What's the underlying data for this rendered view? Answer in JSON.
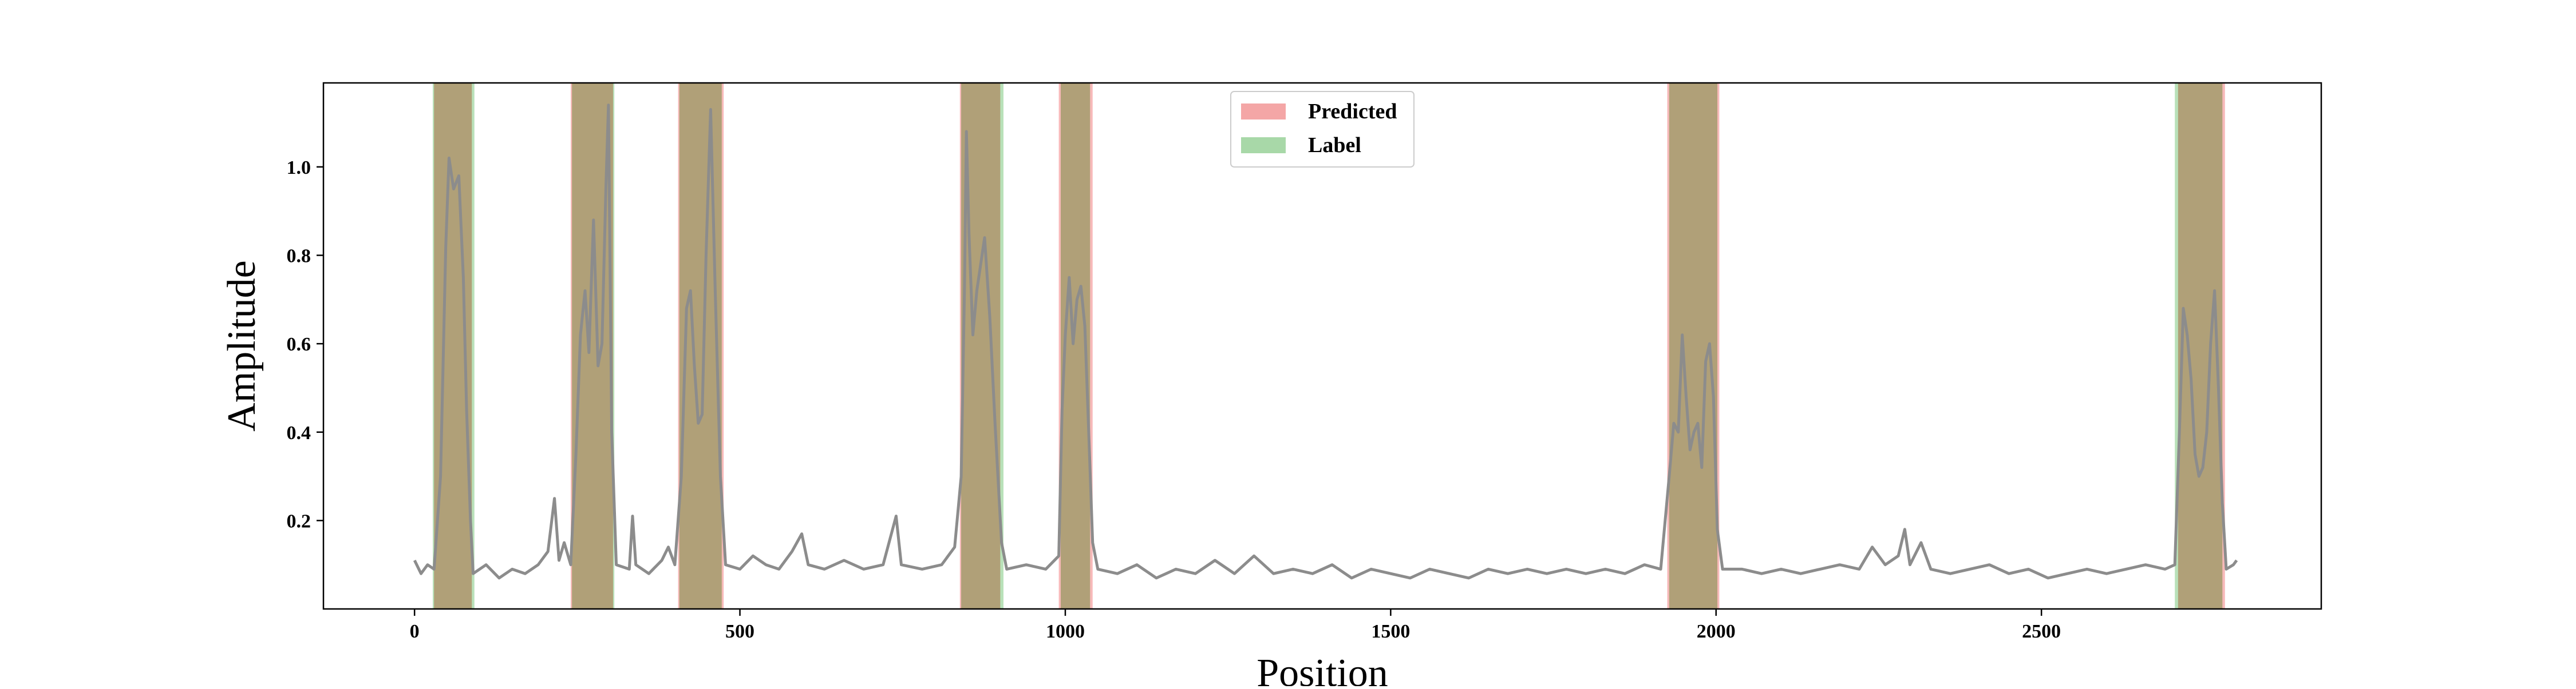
{
  "chart_data": {
    "type": "line",
    "xlabel": "Position",
    "ylabel": "Amplitude",
    "xlim": [
      -140,
      2930
    ],
    "ylim": [
      0.0,
      1.19
    ],
    "xticks": [
      0,
      500,
      1000,
      1500,
      2000,
      2500
    ],
    "yticks": [
      0.2,
      0.4,
      0.6,
      0.8,
      1.0
    ],
    "xtick_labels": [
      "0",
      "500",
      "1000",
      "1500",
      "2000",
      "2500"
    ],
    "ytick_labels": [
      "0.2",
      "0.4",
      "0.6",
      "0.8",
      "1.0"
    ],
    "grid": false,
    "legend": {
      "placement": "top-center",
      "entries": [
        {
          "name": "Predicted",
          "color": "#f4a6a6"
        },
        {
          "name": "Label",
          "color": "#a8d8a8"
        }
      ]
    },
    "colors": {
      "signal": "#8c8c8c",
      "predicted": "#f08080",
      "label": "#7fc97f",
      "overlap": "#b0a078"
    },
    "predicted_regions": [
      [
        30,
        88
      ],
      [
        240,
        305
      ],
      [
        405,
        475
      ],
      [
        838,
        900
      ],
      [
        990,
        1042
      ],
      [
        1925,
        2005
      ],
      [
        2710,
        2782
      ]
    ],
    "label_regions": [
      [
        28,
        92
      ],
      [
        242,
        307
      ],
      [
        407,
        472
      ],
      [
        840,
        905
      ],
      [
        993,
        1038
      ],
      [
        1928,
        2002
      ],
      [
        2705,
        2778
      ]
    ],
    "signal": [
      [
        0,
        0.11
      ],
      [
        10,
        0.08
      ],
      [
        20,
        0.1
      ],
      [
        30,
        0.09
      ],
      [
        40,
        0.3
      ],
      [
        48,
        0.82
      ],
      [
        53,
        1.02
      ],
      [
        60,
        0.95
      ],
      [
        68,
        0.98
      ],
      [
        75,
        0.75
      ],
      [
        80,
        0.45
      ],
      [
        86,
        0.2
      ],
      [
        90,
        0.08
      ],
      [
        110,
        0.1
      ],
      [
        130,
        0.07
      ],
      [
        150,
        0.09
      ],
      [
        170,
        0.08
      ],
      [
        190,
        0.1
      ],
      [
        205,
        0.13
      ],
      [
        215,
        0.25
      ],
      [
        222,
        0.11
      ],
      [
        230,
        0.15
      ],
      [
        240,
        0.1
      ],
      [
        248,
        0.35
      ],
      [
        255,
        0.62
      ],
      [
        262,
        0.72
      ],
      [
        268,
        0.58
      ],
      [
        275,
        0.88
      ],
      [
        282,
        0.55
      ],
      [
        288,
        0.6
      ],
      [
        294,
        0.95
      ],
      [
        298,
        1.14
      ],
      [
        303,
        0.4
      ],
      [
        310,
        0.1
      ],
      [
        330,
        0.09
      ],
      [
        335,
        0.21
      ],
      [
        340,
        0.1
      ],
      [
        360,
        0.08
      ],
      [
        380,
        0.11
      ],
      [
        390,
        0.14
      ],
      [
        400,
        0.1
      ],
      [
        410,
        0.3
      ],
      [
        418,
        0.68
      ],
      [
        424,
        0.72
      ],
      [
        430,
        0.55
      ],
      [
        436,
        0.42
      ],
      [
        442,
        0.44
      ],
      [
        448,
        0.8
      ],
      [
        455,
        1.13
      ],
      [
        462,
        0.72
      ],
      [
        470,
        0.3
      ],
      [
        478,
        0.1
      ],
      [
        500,
        0.09
      ],
      [
        520,
        0.12
      ],
      [
        540,
        0.1
      ],
      [
        560,
        0.09
      ],
      [
        580,
        0.13
      ],
      [
        595,
        0.17
      ],
      [
        605,
        0.1
      ],
      [
        630,
        0.09
      ],
      [
        660,
        0.11
      ],
      [
        690,
        0.09
      ],
      [
        720,
        0.1
      ],
      [
        740,
        0.21
      ],
      [
        748,
        0.1
      ],
      [
        780,
        0.09
      ],
      [
        810,
        0.1
      ],
      [
        830,
        0.14
      ],
      [
        840,
        0.3
      ],
      [
        845,
        0.72
      ],
      [
        848,
        1.08
      ],
      [
        852,
        0.85
      ],
      [
        858,
        0.62
      ],
      [
        864,
        0.72
      ],
      [
        870,
        0.78
      ],
      [
        876,
        0.84
      ],
      [
        884,
        0.66
      ],
      [
        892,
        0.42
      ],
      [
        902,
        0.15
      ],
      [
        910,
        0.09
      ],
      [
        940,
        0.1
      ],
      [
        970,
        0.09
      ],
      [
        990,
        0.12
      ],
      [
        995,
        0.45
      ],
      [
        1000,
        0.62
      ],
      [
        1006,
        0.75
      ],
      [
        1012,
        0.6
      ],
      [
        1018,
        0.7
      ],
      [
        1024,
        0.73
      ],
      [
        1030,
        0.64
      ],
      [
        1036,
        0.4
      ],
      [
        1042,
        0.15
      ],
      [
        1050,
        0.09
      ],
      [
        1080,
        0.08
      ],
      [
        1110,
        0.1
      ],
      [
        1140,
        0.07
      ],
      [
        1170,
        0.09
      ],
      [
        1200,
        0.08
      ],
      [
        1230,
        0.11
      ],
      [
        1260,
        0.08
      ],
      [
        1290,
        0.12
      ],
      [
        1320,
        0.08
      ],
      [
        1350,
        0.09
      ],
      [
        1380,
        0.08
      ],
      [
        1410,
        0.1
      ],
      [
        1440,
        0.07
      ],
      [
        1470,
        0.09
      ],
      [
        1500,
        0.08
      ],
      [
        1530,
        0.07
      ],
      [
        1560,
        0.09
      ],
      [
        1590,
        0.08
      ],
      [
        1620,
        0.07
      ],
      [
        1650,
        0.09
      ],
      [
        1680,
        0.08
      ],
      [
        1710,
        0.09
      ],
      [
        1740,
        0.08
      ],
      [
        1770,
        0.09
      ],
      [
        1800,
        0.08
      ],
      [
        1830,
        0.09
      ],
      [
        1860,
        0.08
      ],
      [
        1890,
        0.1
      ],
      [
        1915,
        0.09
      ],
      [
        1928,
        0.3
      ],
      [
        1935,
        0.42
      ],
      [
        1942,
        0.4
      ],
      [
        1948,
        0.62
      ],
      [
        1954,
        0.48
      ],
      [
        1960,
        0.36
      ],
      [
        1966,
        0.4
      ],
      [
        1972,
        0.42
      ],
      [
        1978,
        0.32
      ],
      [
        1984,
        0.56
      ],
      [
        1990,
        0.6
      ],
      [
        1996,
        0.48
      ],
      [
        2002,
        0.18
      ],
      [
        2010,
        0.09
      ],
      [
        2040,
        0.09
      ],
      [
        2070,
        0.08
      ],
      [
        2100,
        0.09
      ],
      [
        2130,
        0.08
      ],
      [
        2160,
        0.09
      ],
      [
        2190,
        0.1
      ],
      [
        2220,
        0.09
      ],
      [
        2240,
        0.14
      ],
      [
        2260,
        0.1
      ],
      [
        2280,
        0.12
      ],
      [
        2290,
        0.18
      ],
      [
        2298,
        0.1
      ],
      [
        2315,
        0.15
      ],
      [
        2330,
        0.09
      ],
      [
        2360,
        0.08
      ],
      [
        2390,
        0.09
      ],
      [
        2420,
        0.1
      ],
      [
        2450,
        0.08
      ],
      [
        2480,
        0.09
      ],
      [
        2510,
        0.07
      ],
      [
        2540,
        0.08
      ],
      [
        2570,
        0.09
      ],
      [
        2600,
        0.08
      ],
      [
        2630,
        0.09
      ],
      [
        2660,
        0.1
      ],
      [
        2690,
        0.09
      ],
      [
        2705,
        0.1
      ],
      [
        2712,
        0.4
      ],
      [
        2718,
        0.68
      ],
      [
        2724,
        0.62
      ],
      [
        2730,
        0.52
      ],
      [
        2736,
        0.35
      ],
      [
        2742,
        0.3
      ],
      [
        2748,
        0.32
      ],
      [
        2754,
        0.4
      ],
      [
        2760,
        0.6
      ],
      [
        2766,
        0.72
      ],
      [
        2772,
        0.5
      ],
      [
        2778,
        0.24
      ],
      [
        2784,
        0.09
      ],
      [
        2795,
        0.1
      ],
      [
        2800,
        0.11
      ]
    ]
  }
}
